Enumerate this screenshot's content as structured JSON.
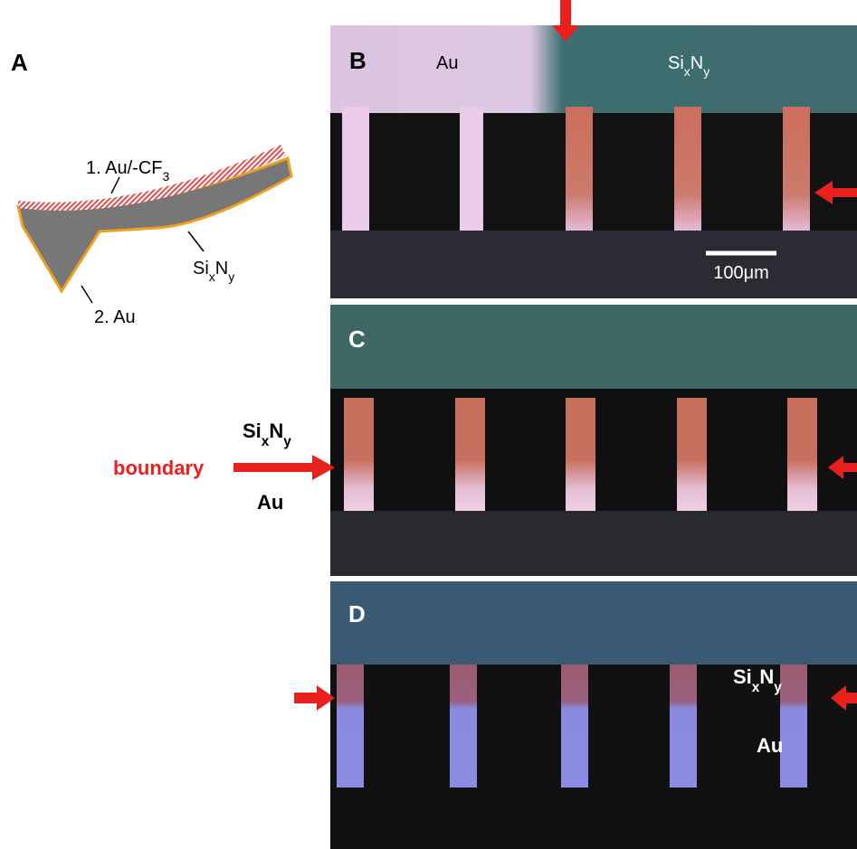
{
  "panel_a": {
    "label": "A",
    "layer1": [
      "1. Au/-CF",
      "3"
    ],
    "substrate": [
      "Si",
      "x",
      "N",
      "y"
    ],
    "layer2": "2. Au"
  },
  "panel_b": {
    "label": "B",
    "au": "Au",
    "sixny": [
      "Si",
      "x",
      "N",
      "y"
    ],
    "scale_bar": "100μm"
  },
  "panel_c": {
    "label": "C",
    "sixny": [
      "Si",
      "x",
      "N",
      "y"
    ],
    "boundary": "boundary",
    "au": "Au"
  },
  "panel_d": {
    "label": "D",
    "sixny": [
      "Si",
      "x",
      "N",
      "y"
    ],
    "au": "Au"
  }
}
